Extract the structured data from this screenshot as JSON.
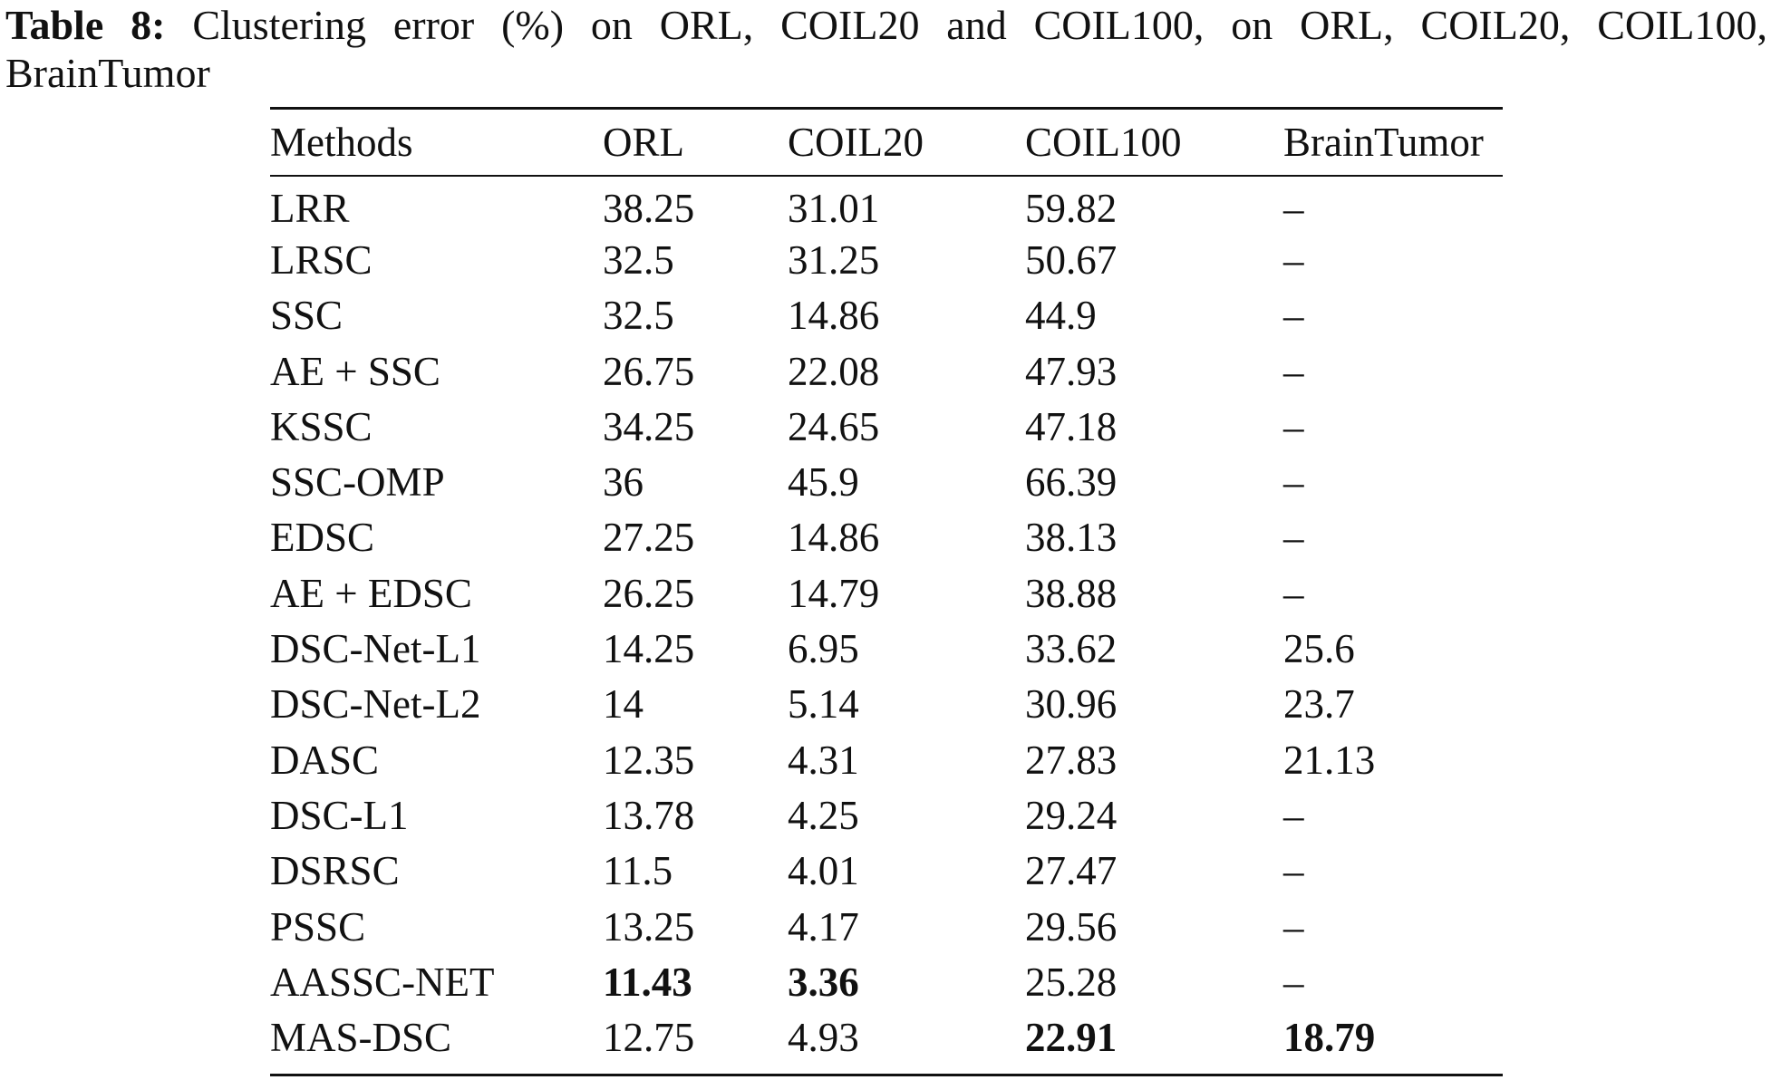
{
  "caption": {
    "label": "Table 8:",
    "line1": "Clustering error (%) on ORL, COIL20 and COIL100, on ORL, COIL20, COIL100,",
    "line2": "BrainTumor"
  },
  "table": {
    "headers": [
      "Methods",
      "ORL",
      "COIL20",
      "COIL100",
      "BrainTumor"
    ],
    "rows": [
      {
        "method": "LRR",
        "orl": "38.25",
        "coil20": "31.01",
        "coil100": "59.82",
        "braintumor": "–"
      },
      {
        "method": "LRSC",
        "orl": "32.5",
        "coil20": "31.25",
        "coil100": "50.67",
        "braintumor": "–"
      },
      {
        "method": "SSC",
        "orl": "32.5",
        "coil20": "14.86",
        "coil100": "44.9",
        "braintumor": "–"
      },
      {
        "method": "AE + SSC",
        "orl": "26.75",
        "coil20": "22.08",
        "coil100": "47.93",
        "braintumor": "–"
      },
      {
        "method": "KSSC",
        "orl": "34.25",
        "coil20": "24.65",
        "coil100": "47.18",
        "braintumor": "–"
      },
      {
        "method": "SSC-OMP",
        "orl": "36",
        "coil20": "45.9",
        "coil100": "66.39",
        "braintumor": "–"
      },
      {
        "method": "EDSC",
        "orl": "27.25",
        "coil20": "14.86",
        "coil100": "38.13",
        "braintumor": "–"
      },
      {
        "method": "AE + EDSC",
        "orl": "26.25",
        "coil20": "14.79",
        "coil100": "38.88",
        "braintumor": "–"
      },
      {
        "method": "DSC-Net-L1",
        "orl": "14.25",
        "coil20": "6.95",
        "coil100": "33.62",
        "braintumor": "25.6"
      },
      {
        "method": "DSC-Net-L2",
        "orl": "14",
        "coil20": "5.14",
        "coil100": "30.96",
        "braintumor": "23.7"
      },
      {
        "method": "DASC",
        "orl": "12.35",
        "coil20": "4.31",
        "coil100": "27.83",
        "braintumor": "21.13"
      },
      {
        "method": "DSC-L1",
        "orl": "13.78",
        "coil20": "4.25",
        "coil100": "29.24",
        "braintumor": "–"
      },
      {
        "method": "DSRSC",
        "orl": "11.5",
        "coil20": "4.01",
        "coil100": "27.47",
        "braintumor": "–"
      },
      {
        "method": "PSSC",
        "orl": "13.25",
        "coil20": "4.17",
        "coil100": "29.56",
        "braintumor": "–"
      },
      {
        "method": "AASSC-NET",
        "orl": "11.43",
        "coil20": "3.36",
        "coil100": "25.28",
        "braintumor": "–"
      },
      {
        "method": "MAS-DSC",
        "orl": "12.75",
        "coil20": "4.93",
        "coil100": "22.91",
        "braintumor": "18.79"
      }
    ]
  }
}
